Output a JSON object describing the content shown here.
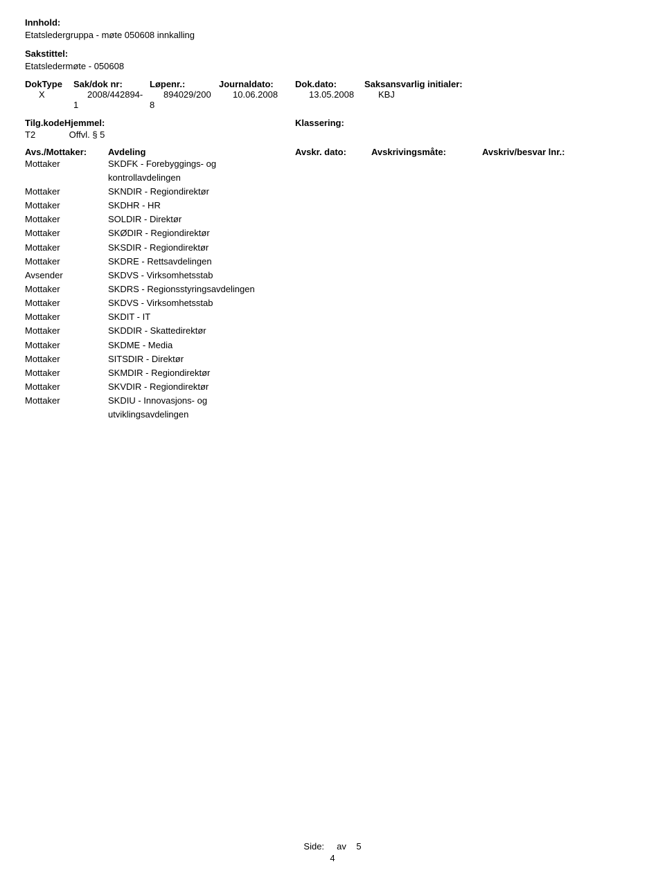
{
  "labels": {
    "innhold": "Innhold:",
    "sakstittel": "Sakstittel:",
    "doktype": "DokType",
    "sakdoknr": "Sak/dok nr:",
    "lopenr": "Løpenr.:",
    "journaldato": "Journaldato:",
    "dokdato": "Dok.dato:",
    "saksansvarlig": "Saksansvarlig initialer:",
    "tilgkode": "Tilg.kode",
    "hjemmel": "Hjemmel:",
    "klassering": "Klassering:",
    "avsmottaker": "Avs./Mottaker:",
    "avdeling": "Avdeling",
    "avskrdato": "Avskr. dato:",
    "avskrivingsmate": "Avskrivingsmåte:",
    "avskrivbesvarlnr": "Avskriv/besvar lnr.:",
    "side": "Side:",
    "av": "av"
  },
  "innhold_text": "Etatsledergruppa - møte 050608 innkalling",
  "sakstittel_text": "Etatsledermøte - 050608",
  "meta": {
    "doktype": "X",
    "sakdoknr_line1": "2008/442894-",
    "sakdoknr_line2": "1",
    "lopenr_line1": "894029/200",
    "lopenr_line2": "8",
    "journaldato": "10.06.2008",
    "dokdato": "13.05.2008",
    "saksansvarlig": "KBJ"
  },
  "tilg": {
    "kode": "T2",
    "hjemmel": "Offvl. § 5",
    "klassering": ""
  },
  "parties": [
    {
      "role": "Mottaker",
      "dept": "SKDFK - Forebyggings- og kontrollavdelingen"
    },
    {
      "role": "Mottaker",
      "dept": "SKNDIR - Regiondirektør"
    },
    {
      "role": "Mottaker",
      "dept": "SKDHR - HR"
    },
    {
      "role": "Mottaker",
      "dept": "SOLDIR - Direktør"
    },
    {
      "role": "Mottaker",
      "dept": "SKØDIR - Regiondirektør"
    },
    {
      "role": "Mottaker",
      "dept": "SKSDIR - Regiondirektør"
    },
    {
      "role": "Mottaker",
      "dept": "SKDRE - Rettsavdelingen"
    },
    {
      "role": "Avsender",
      "dept": "SKDVS - Virksomhetsstab"
    },
    {
      "role": "Mottaker",
      "dept": "SKDRS - Regionsstyringsavdelingen"
    },
    {
      "role": "Mottaker",
      "dept": "SKDVS - Virksomhetsstab"
    },
    {
      "role": "Mottaker",
      "dept": "SKDIT - IT"
    },
    {
      "role": "Mottaker",
      "dept": "SKDDIR - Skattedirektør"
    },
    {
      "role": "Mottaker",
      "dept": "SKDME - Media"
    },
    {
      "role": "Mottaker",
      "dept": "SITSDIR - Direktør"
    },
    {
      "role": "Mottaker",
      "dept": "SKMDIR - Regiondirektør"
    },
    {
      "role": "Mottaker",
      "dept": "SKVDIR - Regiondirektør"
    },
    {
      "role": "Mottaker",
      "dept": "SKDIU - Innovasjons- og utviklingsavdelingen"
    }
  ],
  "footer": {
    "side_label": "Side:",
    "av_label": "av",
    "total": "5",
    "current": "4"
  }
}
